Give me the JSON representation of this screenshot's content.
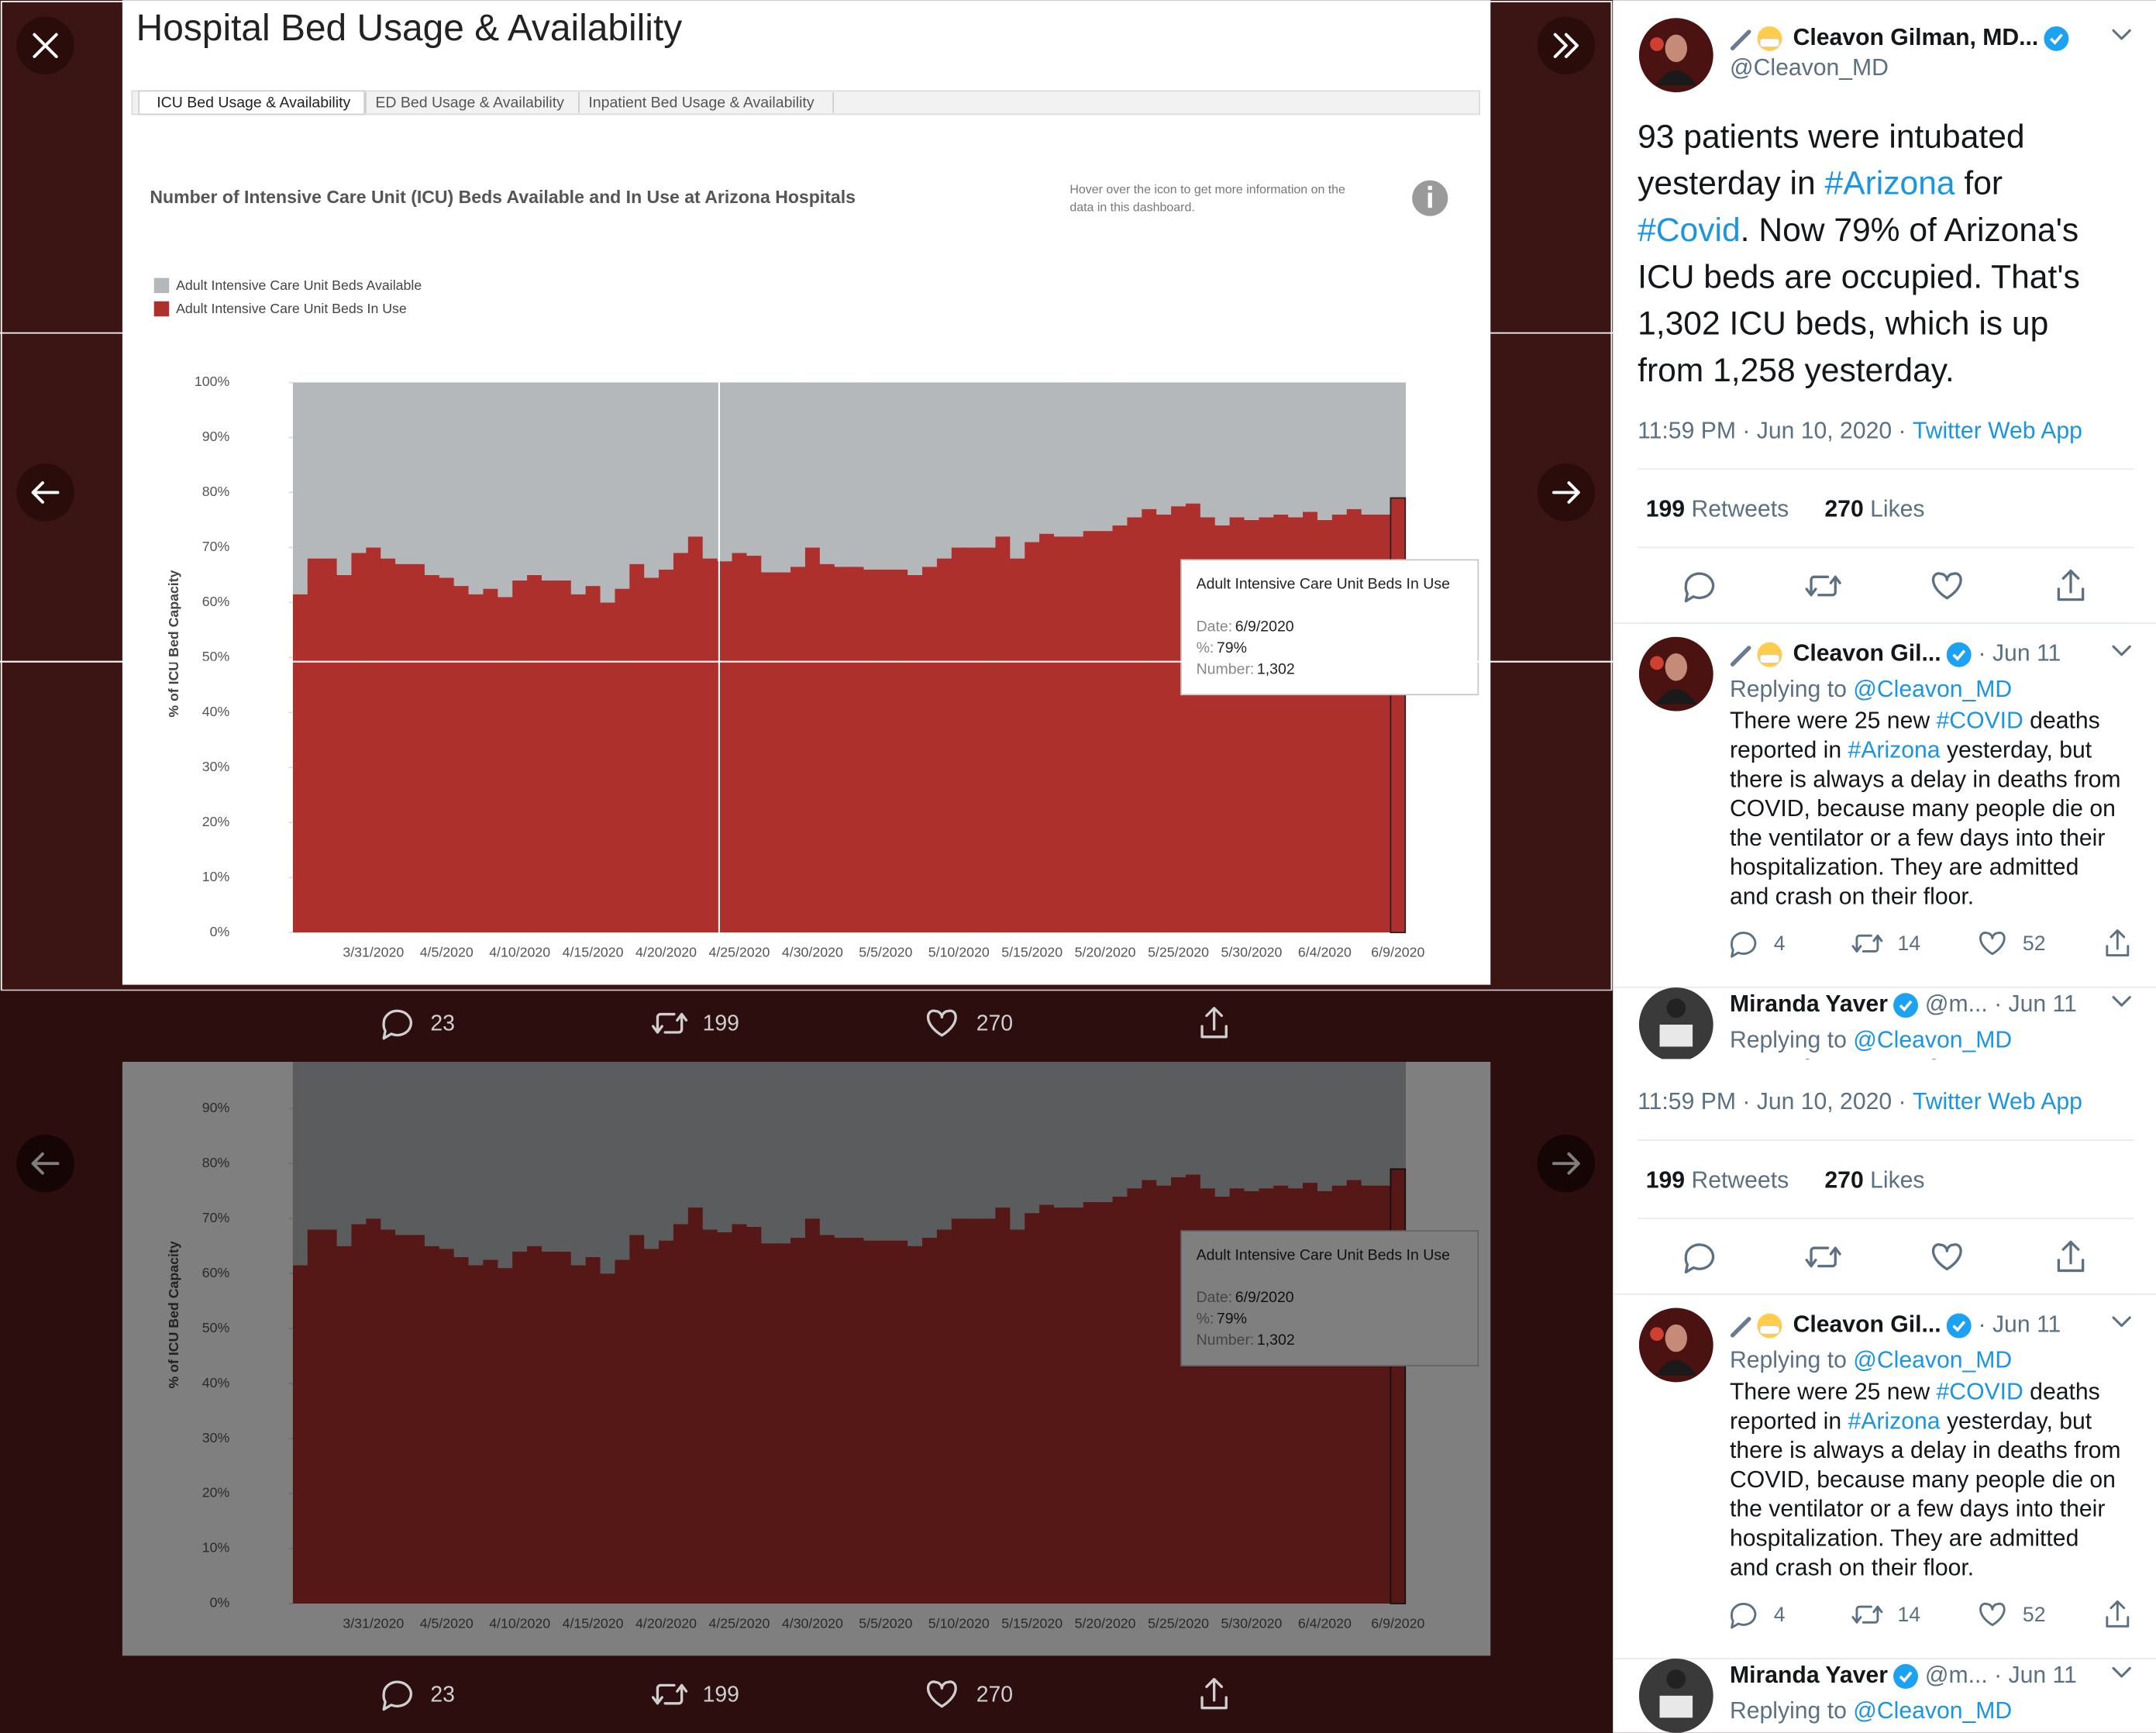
{
  "lightbox": {
    "dashboard_title": "Hospital Bed Usage & Availability",
    "tabs": [
      "ICU Bed Usage & Availability",
      "ED Bed Usage & Availability",
      "Inpatient Bed Usage & Availability"
    ],
    "info_text": [
      "Hover over the icon to get more information on the",
      "data in this dashboard."
    ]
  },
  "chart_data": {
    "type": "bar",
    "stacked": true,
    "title": "Number of Intensive Care Unit (ICU) Beds Available and In Use at Arizona Hospitals",
    "y_label": "% of ICU Bed Capacity",
    "categories": [
      null,
      null,
      null,
      null,
      null,
      "3/31/2020",
      null,
      null,
      null,
      null,
      "4/5/2020",
      null,
      null,
      null,
      null,
      "4/10/2020",
      null,
      null,
      null,
      null,
      "4/15/2020",
      null,
      null,
      null,
      null,
      "4/20/2020",
      null,
      null,
      null,
      null,
      "4/25/2020",
      null,
      null,
      null,
      null,
      "4/30/2020",
      null,
      null,
      null,
      null,
      "5/5/2020",
      null,
      null,
      null,
      null,
      "5/10/2020",
      null,
      null,
      null,
      null,
      "5/15/2020",
      null,
      null,
      null,
      null,
      "5/20/2020",
      null,
      null,
      null,
      null,
      "5/25/2020",
      null,
      null,
      null,
      null,
      "5/30/2020",
      null,
      null,
      null,
      null,
      "6/4/2020",
      null,
      null,
      null,
      null,
      "6/9/2020"
    ],
    "series": [
      {
        "name": "Adult Intensive Care Unit Beds In Use",
        "color": "#ad302d",
        "values": [
          61.5,
          68,
          68,
          65,
          69,
          70,
          68,
          67,
          67,
          65,
          64.5,
          63,
          61.5,
          62.5,
          61,
          64,
          65,
          64,
          64,
          61.5,
          63,
          60,
          62.5,
          67,
          64.5,
          66,
          69,
          72,
          68,
          67.5,
          69,
          68.5,
          65.5,
          65.5,
          66.5,
          70,
          67,
          66.5,
          66.5,
          66,
          66,
          66,
          65,
          66.5,
          68,
          70,
          70,
          70,
          72,
          68,
          71,
          72.5,
          72,
          72,
          73,
          73,
          74,
          75.5,
          77,
          76,
          77.5,
          78,
          75.5,
          74,
          75.5,
          75,
          75.5,
          76,
          75.5,
          76.5,
          75,
          76,
          77,
          76,
          76,
          79
        ]
      },
      {
        "name": "Adult Intensive Care Unit Beds Available",
        "color": "#b4b8ba",
        "values": [
          38.5,
          32,
          32,
          35,
          31,
          30,
          32,
          33,
          33,
          35,
          35.5,
          37,
          38.5,
          37.5,
          39,
          36,
          35,
          36,
          36,
          38.5,
          37,
          40,
          37.5,
          33,
          35.5,
          34,
          31,
          28,
          32,
          32.5,
          31,
          31.5,
          34.5,
          34.5,
          33.5,
          30,
          33,
          33.5,
          33.5,
          34,
          34,
          34,
          35,
          33.5,
          32,
          30,
          30,
          30,
          28,
          32,
          29,
          27.5,
          28,
          28,
          27,
          27,
          26,
          24.5,
          23,
          24,
          22.5,
          22,
          24.5,
          26,
          24.5,
          25,
          24.5,
          24,
          24.5,
          23.5,
          25,
          24,
          23,
          24,
          24,
          21
        ]
      }
    ],
    "ylim": [
      0,
      100
    ],
    "yticks": [
      {
        "value": 0,
        "label": "0%"
      },
      {
        "value": 10,
        "label": "10%"
      },
      {
        "value": 20,
        "label": "20%"
      },
      {
        "value": 30,
        "label": "30%"
      },
      {
        "value": 40,
        "label": "40%"
      },
      {
        "value": 50,
        "label": "50%"
      },
      {
        "value": 60,
        "label": "60%"
      },
      {
        "value": 70,
        "label": "70%"
      },
      {
        "value": 80,
        "label": "80%"
      },
      {
        "value": 90,
        "label": "90%"
      },
      {
        "value": 100,
        "label": "100%"
      }
    ],
    "tooltip": {
      "title": "Adult Intensive Care Unit Beds In Use",
      "fields": [
        {
          "label": "Date:",
          "value": "6/9/2020"
        },
        {
          "label": "%:",
          "value": "79%"
        },
        {
          "label": "Number:",
          "value": "1,302"
        }
      ]
    }
  },
  "behind_tweet": {
    "replies": "23",
    "retweets": "199",
    "likes": "270"
  },
  "tweet": {
    "name": "Cleavon Gilman, MD...",
    "handle": "@Cleavon_MD",
    "lines": [
      [
        "93 patients were intubated"
      ],
      [
        "yesterday in ",
        "#Arizona",
        " for"
      ],
      [
        "#Covid",
        ". Now 79% of Arizona's"
      ],
      [
        "ICU beds are occupied. That's"
      ],
      [
        "1,302 ICU beds, which is up"
      ],
      [
        "from 1,258 yesterday."
      ]
    ],
    "meta": "11:59 PM · Jun 10, 2020 · ",
    "source": "Twitter Web App",
    "retweets": "199",
    "retweets_label": " Retweets",
    "likes": "270",
    "likes_label": " Likes"
  },
  "reply": {
    "name": "Cleavon Gil...",
    "date": "· Jun 11",
    "replying": "Replying to ",
    "replying_to": "@Cleavon_MD",
    "lines": [
      [
        "There were 25 new ",
        "#COVID",
        " deaths"
      ],
      [
        "reported in ",
        "#Arizona",
        " yesterday, but"
      ],
      [
        "there is always a delay in deaths from"
      ],
      [
        "COVID, because many people die on"
      ],
      [
        "the ventilator or a few days into their"
      ],
      [
        "hospitalization. They are admitted"
      ],
      [
        "and crash on their floor."
      ]
    ],
    "replies": "4",
    "retweets": "14",
    "likes": "52"
  },
  "next_reply": {
    "name": "Miranda Yaver",
    "handle_date": "@m... · Jun 11",
    "replying": "Replying to ",
    "replying_to": "@Cleavon_MD"
  }
}
